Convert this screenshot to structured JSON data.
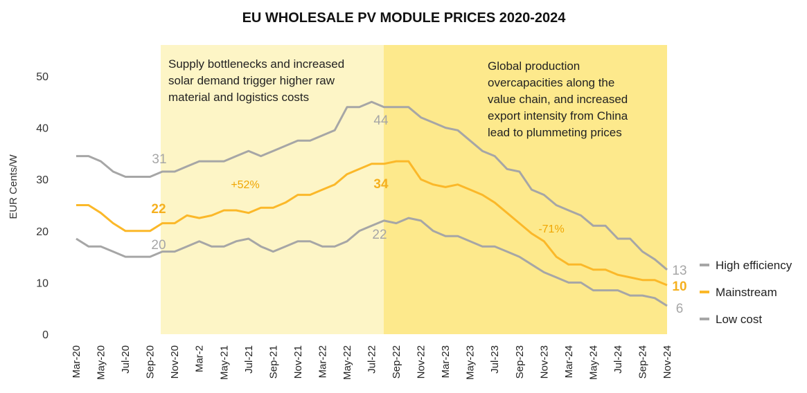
{
  "chart_data": {
    "type": "line",
    "title": "EU WHOLESALE PV MODULE PRICES 2020-2024",
    "y_label": "EUR Cents/W",
    "categories": [
      "Mar-20",
      null,
      "May-20",
      null,
      "Jul-20",
      null,
      "Sep-20",
      null,
      "Nov-20",
      null,
      "Mar-2",
      null,
      "May-21",
      null,
      "Jul-21",
      null,
      "Sep-21",
      null,
      "Nov-21",
      null,
      "Mar-22",
      null,
      "May-22",
      null,
      "Jul-22",
      null,
      "Sep-22",
      null,
      "Nov-22",
      null,
      "Mar-23",
      null,
      "May-23",
      null,
      "Jul-23",
      null,
      "Sep-23",
      null,
      "Nov-23",
      null,
      "Mar-24",
      null,
      "May-24",
      null,
      "Jul-24",
      null,
      "Sep-24",
      null,
      "Nov-24"
    ],
    "series": [
      {
        "name": "High efficiency",
        "color": "#a6a6a6",
        "values": [
          34.5,
          34.5,
          33.5,
          31.5,
          30.5,
          30.5,
          30.5,
          31.5,
          31.5,
          32.5,
          33.5,
          33.5,
          33.5,
          34.5,
          35.5,
          34.5,
          35.5,
          36.5,
          37.5,
          37.5,
          38.5,
          39.5,
          44,
          44,
          45,
          44,
          44,
          44,
          42,
          41,
          40,
          39.5,
          37.5,
          35.5,
          34.5,
          32,
          31.5,
          28,
          27,
          25,
          24,
          23,
          21,
          21,
          18.5,
          18.5,
          16,
          14.5,
          12.5
        ]
      },
      {
        "name": "Mainstream",
        "color": "#fbb829",
        "values": [
          25,
          25,
          23.5,
          21.5,
          20,
          20,
          20,
          21.5,
          21.5,
          23,
          22.5,
          23,
          24,
          24,
          23.5,
          24.5,
          24.5,
          25.5,
          27,
          27,
          28,
          29,
          31,
          32,
          33,
          33,
          33.5,
          33.5,
          30,
          29,
          28.5,
          29,
          28,
          27,
          25.5,
          23.5,
          21.5,
          19.5,
          18,
          15,
          13.5,
          13.5,
          12.5,
          12.5,
          11.5,
          11,
          10.5,
          10.5,
          9.5
        ]
      },
      {
        "name": "Low cost",
        "color": "#a6a6a6",
        "values": [
          18.5,
          17,
          17,
          16,
          15,
          15,
          15,
          16,
          16,
          17,
          18,
          17,
          17,
          18,
          18.5,
          17,
          16,
          17,
          18,
          18,
          17,
          17,
          18,
          20,
          21,
          22,
          21.5,
          22.5,
          22,
          20,
          19,
          19,
          18,
          17,
          17,
          16,
          15,
          13.5,
          12,
          11,
          10,
          10,
          8.5,
          8.5,
          8.5,
          7.5,
          7.5,
          7,
          5.5
        ]
      }
    ],
    "annotations": [
      [
        "Supply bottlenecks and increased",
        "solar demand trigger higher raw",
        "material and logistics costs"
      ],
      [
        "Global production",
        "overcapacities along the",
        "value chain, and increased",
        "export intensity from China",
        "lead to plummeting prices"
      ],
      "+52%",
      "-71%",
      "31",
      "22",
      "20",
      "44",
      "34",
      "22",
      "13",
      "10",
      "6"
    ],
    "ylim": [
      0,
      50
    ],
    "yticks": [
      0,
      10,
      20,
      30,
      40,
      50
    ]
  }
}
